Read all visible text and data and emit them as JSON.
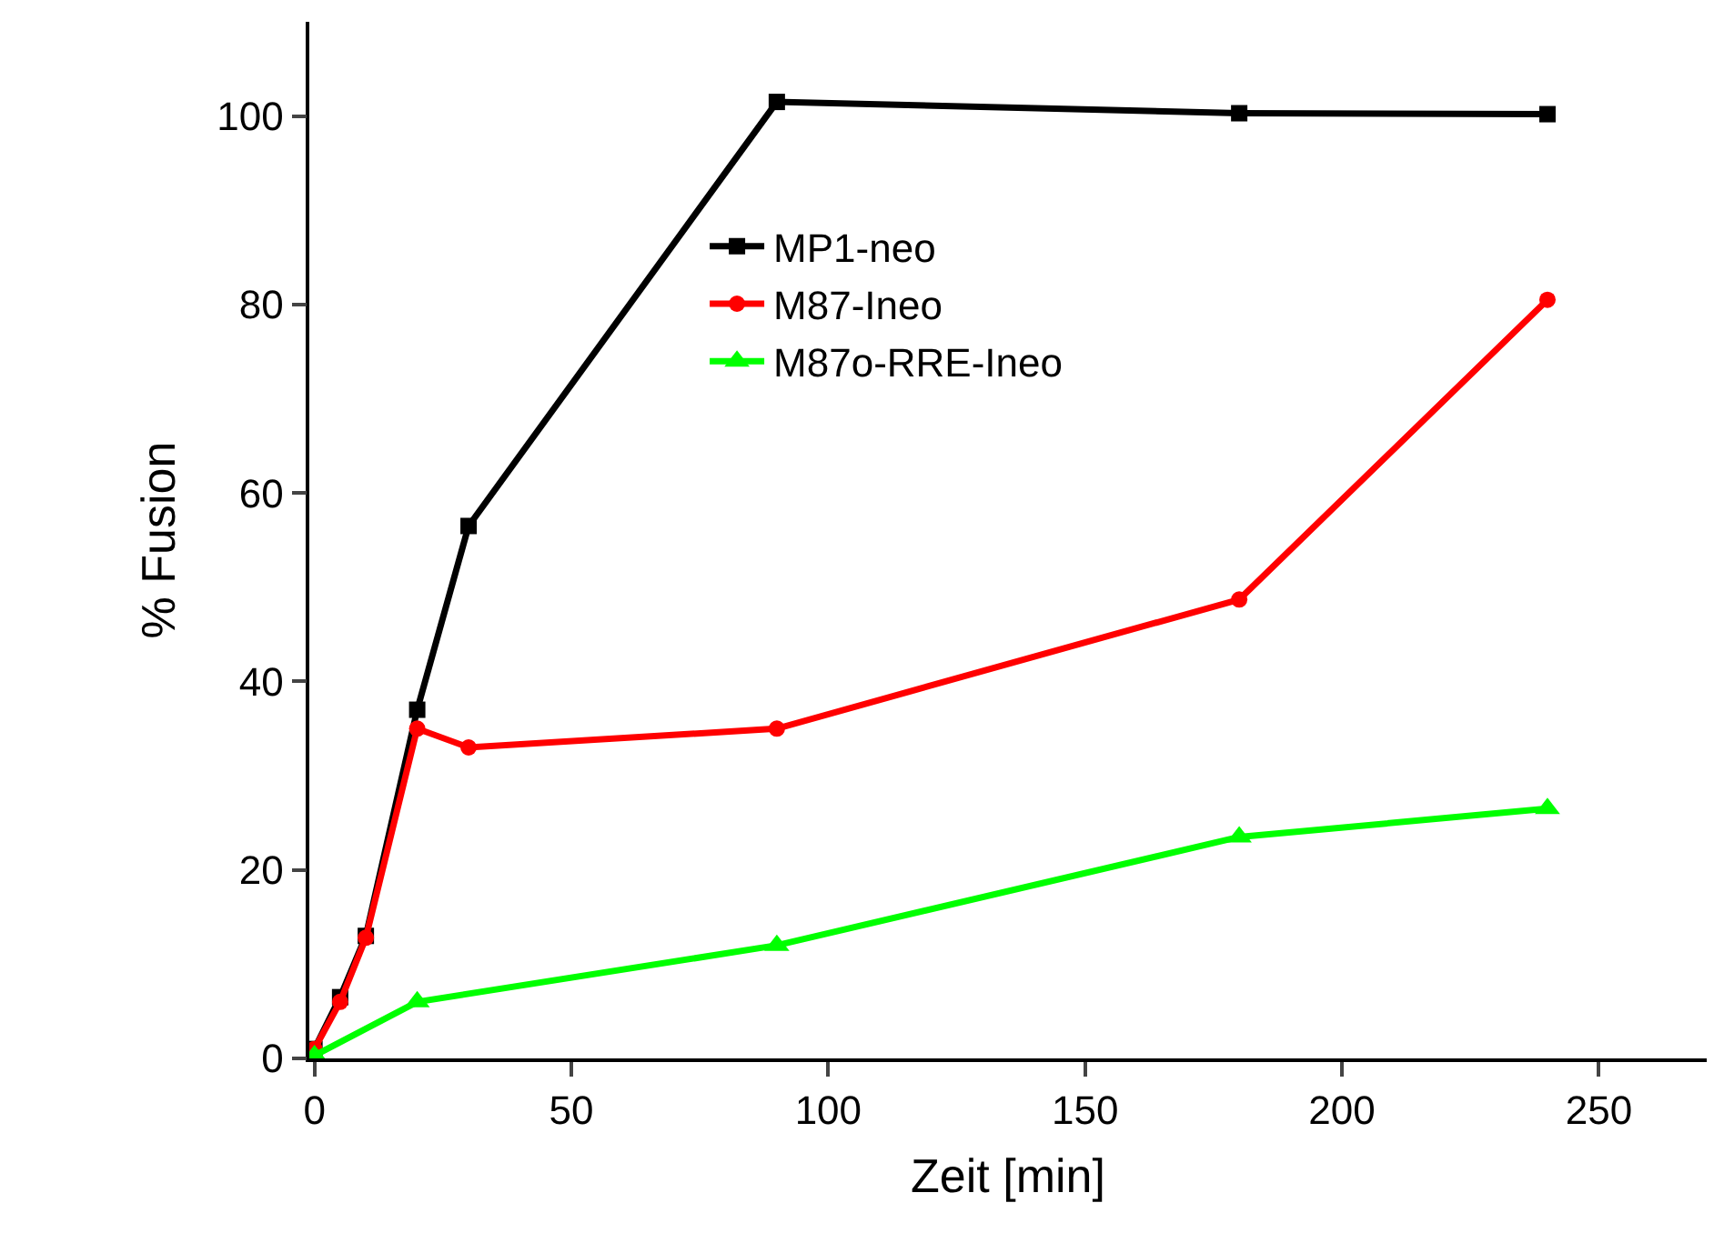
{
  "chart_data": {
    "type": "line",
    "xlabel": "Zeit [min]",
    "ylabel": "% Fusion",
    "xlim": [
      -1,
      271
    ],
    "ylim": [
      0,
      110
    ],
    "xticks": [
      0,
      50,
      100,
      150,
      200,
      250
    ],
    "yticks": [
      0,
      20,
      40,
      60,
      80,
      100
    ],
    "legend": "top",
    "line_style": "solid",
    "series": [
      {
        "name": "MP1-neo",
        "color": "#000000",
        "marker": "square",
        "x": [
          0,
          5,
          10,
          20,
          30,
          90,
          180,
          240
        ],
        "values": [
          1,
          6.5,
          13,
          37,
          56.5,
          101.5,
          100.3,
          100.2
        ]
      },
      {
        "name": "M87-Ineo",
        "color": "#ff0000",
        "marker": "circle",
        "x": [
          0,
          5,
          10,
          20,
          30,
          90,
          180,
          240
        ],
        "values": [
          1,
          6,
          12.8,
          35,
          33,
          35,
          48.7,
          80.5
        ]
      },
      {
        "name": "M87o-RRE-Ineo",
        "color": "#00ff00",
        "marker": "triangle",
        "x": [
          0,
          20,
          90,
          180,
          240
        ],
        "values": [
          0.3,
          6,
          12,
          23.5,
          26.5
        ]
      }
    ]
  }
}
